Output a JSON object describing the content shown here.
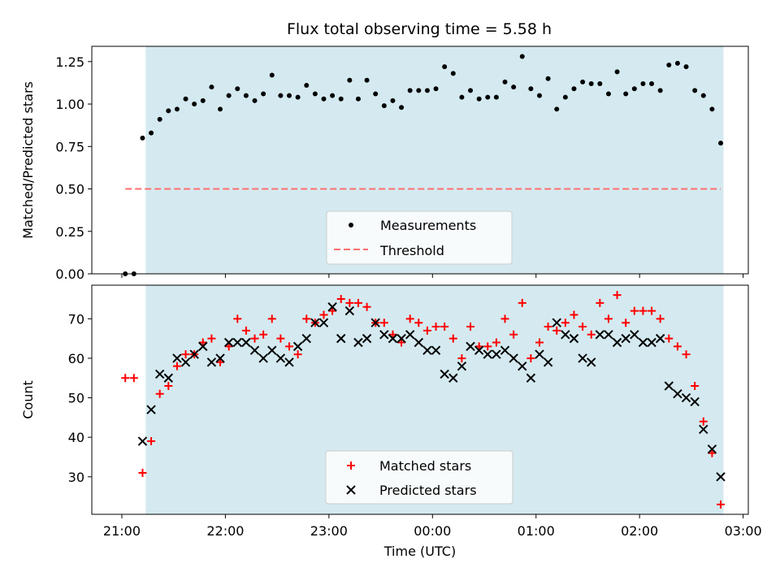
{
  "title": "Flux total observing time = 5.58 h",
  "colors": {
    "shade": "#d4eaf0",
    "measurement": "#000000",
    "threshold": "#ff6e6e",
    "matched": "#ff0000",
    "predicted": "#000000"
  },
  "chart_data": [
    {
      "type": "scatter",
      "title": "Flux total observing time = 5.58 h",
      "ylabel": "Matched/Predicted stars",
      "xlabel": "",
      "ylim": [
        0,
        1.34
      ],
      "yticks": [
        0.0,
        0.25,
        0.5,
        0.75,
        1.0,
        1.25
      ],
      "ytick_labels": [
        "0.00",
        "0.25",
        "0.50",
        "0.75",
        "1.00",
        "1.25"
      ],
      "xlim_hours": [
        20.71,
        27.05
      ],
      "xticks_hours": [
        21,
        22,
        23,
        24,
        25,
        26,
        27
      ],
      "shaded_interval_hours": [
        21.23,
        26.81
      ],
      "legend": {
        "placement": "lower center",
        "entries": [
          "Measurements",
          "Threshold"
        ]
      },
      "series": [
        {
          "name": "Measurements",
          "marker": "dot",
          "x": [
            "21:02",
            "21:07",
            "21:12",
            "21:17",
            "21:22",
            "21:27",
            "21:32",
            "21:37",
            "21:42",
            "21:47",
            "21:52",
            "21:57",
            "22:02",
            "22:07",
            "22:12",
            "22:17",
            "22:22",
            "22:27",
            "22:32",
            "22:37",
            "22:42",
            "22:47",
            "22:52",
            "22:57",
            "23:02",
            "23:07",
            "23:12",
            "23:17",
            "23:22",
            "23:27",
            "23:32",
            "23:37",
            "23:42",
            "23:47",
            "23:52",
            "23:57",
            "00:02",
            "00:07",
            "00:12",
            "00:17",
            "00:22",
            "00:27",
            "00:32",
            "00:37",
            "00:42",
            "00:47",
            "00:52",
            "00:57",
            "01:02",
            "01:07",
            "01:12",
            "01:17",
            "01:22",
            "01:27",
            "01:32",
            "01:37",
            "01:42",
            "01:47",
            "01:52",
            "01:57",
            "02:02",
            "02:07",
            "02:12",
            "02:17",
            "02:22",
            "02:27",
            "02:32",
            "02:37",
            "02:42",
            "02:47"
          ],
          "y": [
            0.0,
            0.0,
            0.8,
            0.83,
            0.91,
            0.96,
            0.97,
            1.03,
            1.0,
            1.02,
            1.1,
            0.97,
            1.05,
            1.09,
            1.05,
            1.02,
            1.06,
            1.17,
            1.05,
            1.05,
            1.04,
            1.11,
            1.06,
            1.03,
            1.05,
            1.03,
            1.14,
            1.03,
            1.14,
            1.06,
            0.99,
            1.02,
            0.98,
            1.08,
            1.08,
            1.08,
            1.09,
            1.22,
            1.18,
            1.04,
            1.08,
            1.03,
            1.04,
            1.04,
            1.13,
            1.1,
            1.28,
            1.09,
            1.05,
            1.15,
            0.97,
            1.04,
            1.09,
            1.13,
            1.12,
            1.12,
            1.06,
            1.19,
            1.06,
            1.09,
            1.12,
            1.12,
            1.08,
            1.23,
            1.24,
            1.22,
            1.08,
            1.05,
            0.97,
            0.77
          ]
        },
        {
          "name": "Threshold",
          "marker": "dashed-line",
          "x": [
            "21:02",
            "02:47"
          ],
          "y": [
            0.5,
            0.5
          ]
        }
      ]
    },
    {
      "type": "scatter",
      "ylabel": "Count",
      "xlabel": "Time (UTC)",
      "ylim": [
        20.5,
        78.5
      ],
      "yticks": [
        30,
        40,
        50,
        60,
        70
      ],
      "ytick_labels": [
        "30",
        "40",
        "50",
        "60",
        "70"
      ],
      "xlim_hours": [
        20.71,
        27.05
      ],
      "xticks_hours": [
        21,
        22,
        23,
        24,
        25,
        26,
        27
      ],
      "xtick_labels": [
        "21:00",
        "22:00",
        "23:00",
        "00:00",
        "01:00",
        "02:00",
        "03:00"
      ],
      "shaded_interval_hours": [
        21.23,
        26.81
      ],
      "legend": {
        "placement": "lower center",
        "entries": [
          "Matched stars",
          "Predicted stars"
        ]
      },
      "series": [
        {
          "name": "Matched stars",
          "marker": "plus",
          "x": [
            "21:02",
            "21:07",
            "21:12",
            "21:17",
            "21:22",
            "21:27",
            "21:32",
            "21:37",
            "21:42",
            "21:47",
            "21:52",
            "21:57",
            "22:02",
            "22:07",
            "22:12",
            "22:17",
            "22:22",
            "22:27",
            "22:32",
            "22:37",
            "22:42",
            "22:47",
            "22:52",
            "22:57",
            "23:02",
            "23:07",
            "23:12",
            "23:17",
            "23:22",
            "23:27",
            "23:32",
            "23:37",
            "23:42",
            "23:47",
            "23:52",
            "23:57",
            "00:02",
            "00:07",
            "00:12",
            "00:17",
            "00:22",
            "00:27",
            "00:32",
            "00:37",
            "00:42",
            "00:47",
            "00:52",
            "00:57",
            "01:02",
            "01:07",
            "01:12",
            "01:17",
            "01:22",
            "01:27",
            "01:32",
            "01:37",
            "01:42",
            "01:47",
            "01:52",
            "01:57",
            "02:02",
            "02:07",
            "02:12",
            "02:17",
            "02:22",
            "02:27",
            "02:32",
            "02:37",
            "02:42",
            "02:47"
          ],
          "y": [
            55,
            55,
            31,
            39,
            51,
            53,
            58,
            61,
            61,
            64,
            65,
            59,
            63,
            70,
            67,
            65,
            66,
            70,
            65,
            63,
            61,
            70,
            69,
            71,
            72,
            75,
            74,
            74,
            73,
            69,
            69,
            66,
            64,
            70,
            69,
            67,
            68,
            68,
            65,
            60,
            68,
            63,
            63,
            64,
            70,
            66,
            74,
            60,
            64,
            68,
            67,
            69,
            71,
            68,
            66,
            74,
            70,
            76,
            69,
            72,
            72,
            72,
            70,
            65,
            63,
            61,
            53,
            44,
            36,
            23
          ]
        },
        {
          "name": "Predicted stars",
          "marker": "x",
          "x": [
            "21:12",
            "21:17",
            "21:22",
            "21:27",
            "21:32",
            "21:37",
            "21:42",
            "21:47",
            "21:52",
            "21:57",
            "22:02",
            "22:07",
            "22:12",
            "22:17",
            "22:22",
            "22:27",
            "22:32",
            "22:37",
            "22:42",
            "22:47",
            "22:52",
            "22:57",
            "23:02",
            "23:07",
            "23:12",
            "23:17",
            "23:22",
            "23:27",
            "23:32",
            "23:37",
            "23:42",
            "23:47",
            "23:52",
            "23:57",
            "00:02",
            "00:07",
            "00:12",
            "00:17",
            "00:22",
            "00:27",
            "00:32",
            "00:37",
            "00:42",
            "00:47",
            "00:52",
            "00:57",
            "01:02",
            "01:07",
            "01:12",
            "01:17",
            "01:22",
            "01:27",
            "01:32",
            "01:37",
            "01:42",
            "01:47",
            "01:52",
            "01:57",
            "02:02",
            "02:07",
            "02:12",
            "02:17",
            "02:22",
            "02:27",
            "02:32",
            "02:37",
            "02:42",
            "02:47"
          ],
          "y": [
            39,
            47,
            56,
            55,
            60,
            59,
            61,
            63,
            59,
            60,
            64,
            64,
            64,
            62,
            60,
            62,
            60,
            59,
            63,
            65,
            69,
            69,
            73,
            65,
            72,
            64,
            65,
            69,
            66,
            65,
            65,
            66,
            64,
            62,
            62,
            56,
            55,
            58,
            63,
            62,
            61,
            61,
            62,
            60,
            58,
            55,
            61,
            59,
            69,
            66,
            65,
            60,
            59,
            66,
            66,
            64,
            65,
            66,
            64,
            64,
            65,
            53,
            51,
            50,
            49,
            42,
            37,
            30
          ]
        }
      ]
    }
  ]
}
